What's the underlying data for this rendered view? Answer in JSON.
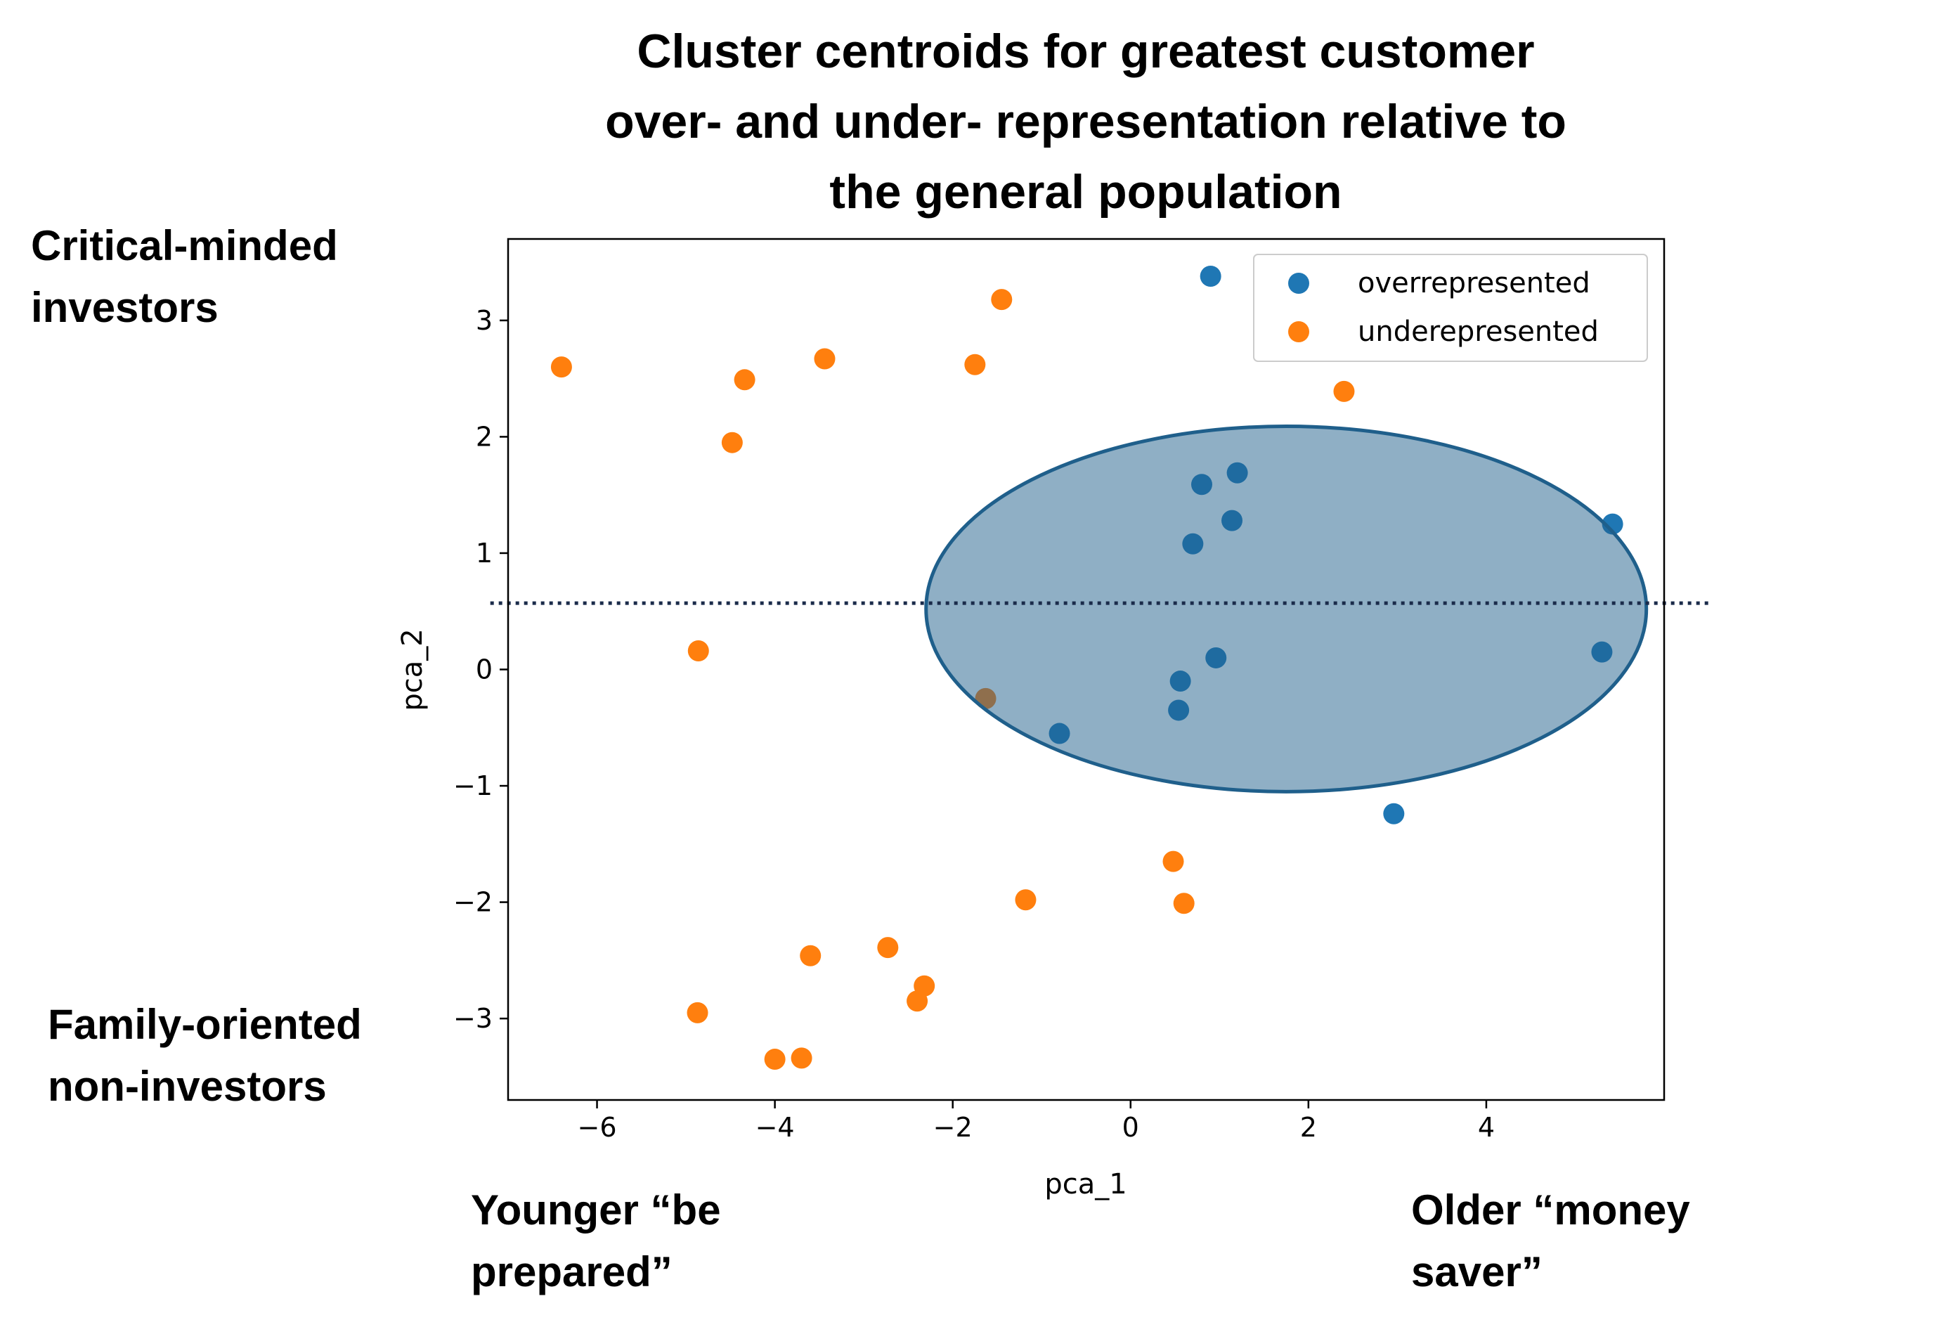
{
  "chart_data": {
    "type": "scatter",
    "title_lines": [
      "Cluster centroids for greatest customer",
      "over- and under- representation relative to",
      "the general population"
    ],
    "xlabel": "pca_1",
    "ylabel": "pca_2",
    "xlim": [
      -7.0,
      6.0
    ],
    "ylim": [
      -3.7,
      3.7
    ],
    "xticks": [
      -6,
      -4,
      -2,
      0,
      2,
      4
    ],
    "yticks": [
      -3,
      -2,
      -1,
      0,
      1,
      2,
      3
    ],
    "grid": false,
    "legend_position": "top-right",
    "series": [
      {
        "name": "overrepresented",
        "color": "#1f77b4",
        "points": [
          [
            0.9,
            3.38
          ],
          [
            0.8,
            1.59
          ],
          [
            1.2,
            1.69
          ],
          [
            1.14,
            1.28
          ],
          [
            0.7,
            1.08
          ],
          [
            5.42,
            1.25
          ],
          [
            5.3,
            0.15
          ],
          [
            0.96,
            0.1
          ],
          [
            0.56,
            -0.1
          ],
          [
            0.54,
            -0.35
          ],
          [
            -0.8,
            -0.55
          ],
          [
            2.96,
            -1.24
          ]
        ]
      },
      {
        "name": "underepresented",
        "color": "#ff7f0e",
        "points": [
          [
            -6.4,
            2.6
          ],
          [
            -4.34,
            2.49
          ],
          [
            -3.44,
            2.67
          ],
          [
            -1.75,
            2.62
          ],
          [
            -1.45,
            3.18
          ],
          [
            -4.48,
            1.95
          ],
          [
            2.4,
            2.39
          ],
          [
            -4.86,
            0.16
          ],
          [
            -1.63,
            -0.25
          ],
          [
            0.48,
            -1.65
          ],
          [
            0.6,
            -2.01
          ],
          [
            -1.18,
            -1.98
          ],
          [
            -3.6,
            -2.46
          ],
          [
            -2.73,
            -2.39
          ],
          [
            -2.32,
            -2.72
          ],
          [
            -2.4,
            -2.85
          ],
          [
            -4.87,
            -2.95
          ],
          [
            -4.0,
            -3.35
          ],
          [
            -3.7,
            -3.34
          ]
        ]
      }
    ],
    "annotations": {
      "ellipse": {
        "cx": 1.75,
        "cy": 0.52,
        "rx": 4.05,
        "ry": 1.57,
        "fill": "#1f5f8b",
        "fill_opacity": 0.5,
        "stroke": "#1f5f8b"
      },
      "hline": {
        "y": 0.57,
        "x_from": -7.2,
        "x_to": 6.5,
        "style": "dotted",
        "color": "#1a2b4a"
      }
    },
    "side_labels": {
      "top_left": [
        "Critical-minded",
        "investors"
      ],
      "bottom_left": [
        "Family-oriented",
        "non-investors"
      ],
      "bottom_left_x": [
        "Younger “be",
        "prepared”"
      ],
      "bottom_right_x": [
        "Older “money",
        "saver”"
      ]
    }
  }
}
